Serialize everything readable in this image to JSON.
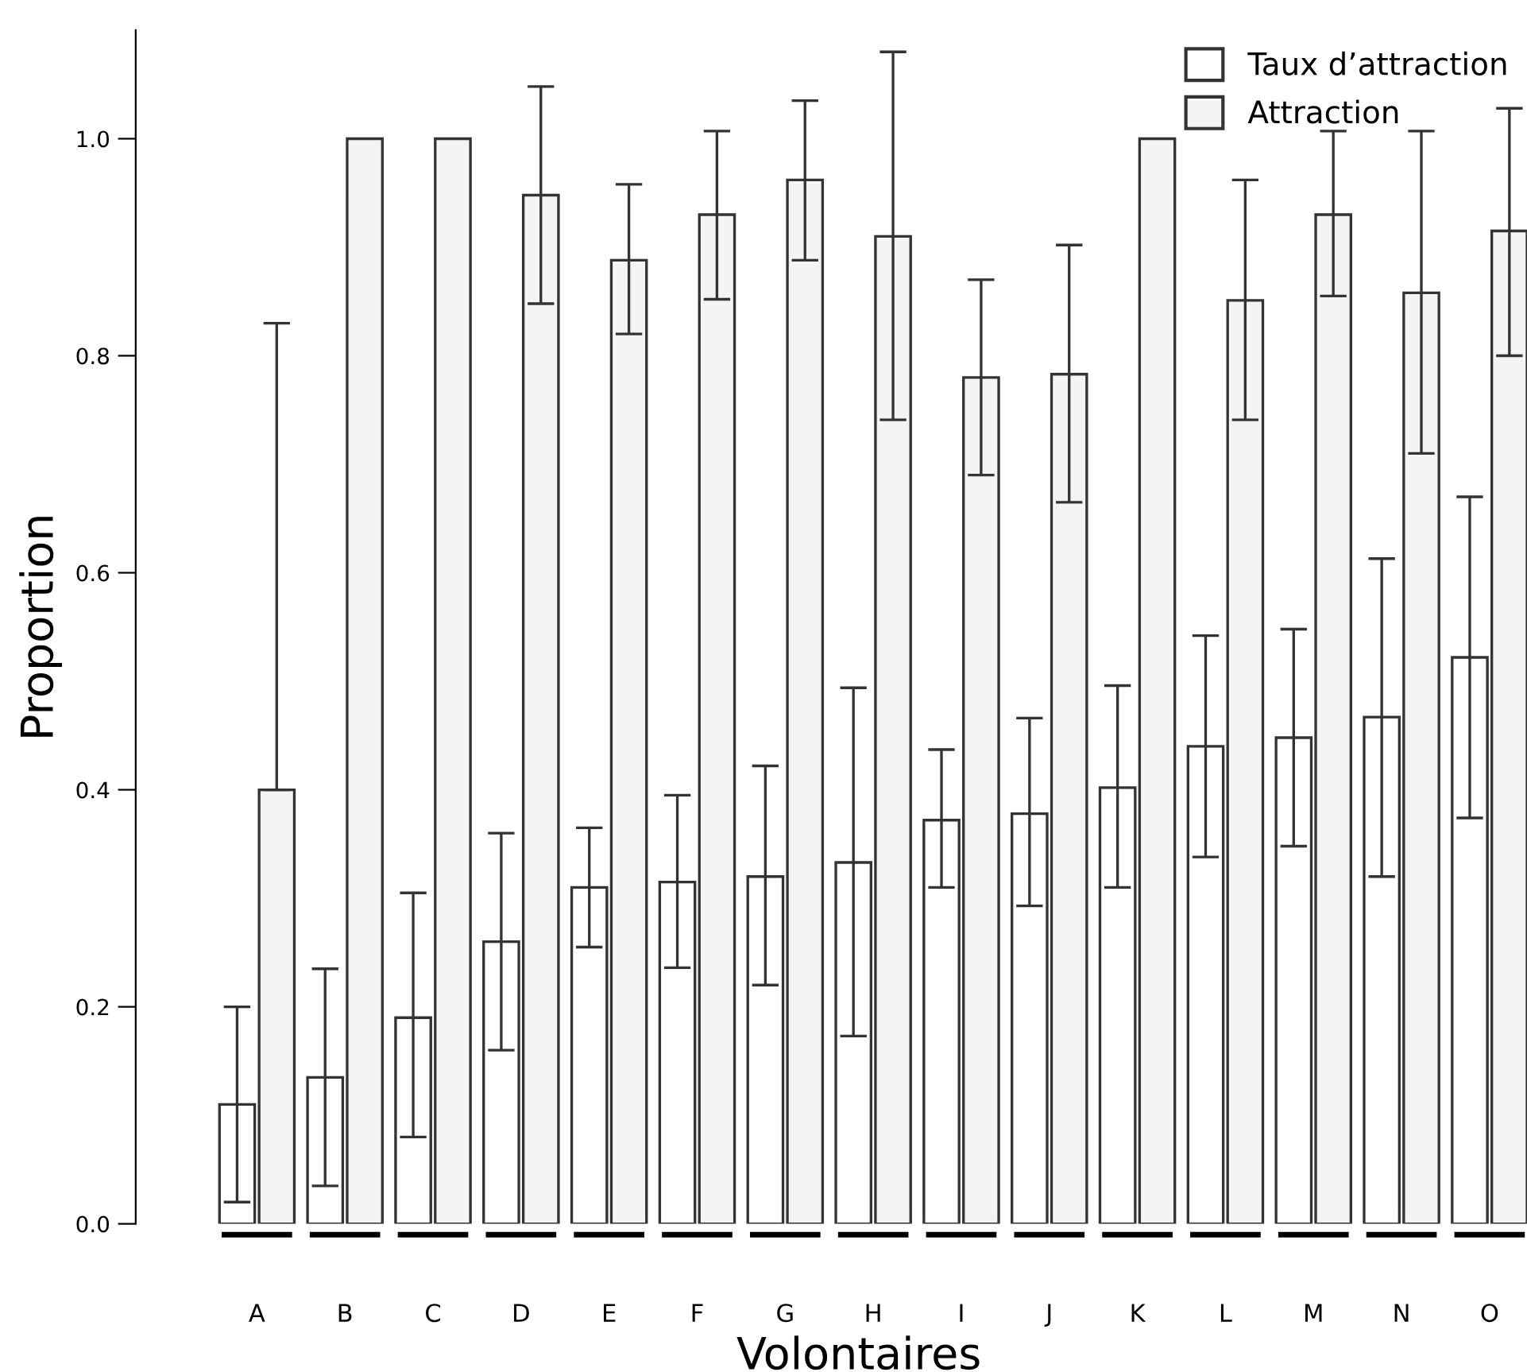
{
  "chart_data": {
    "type": "bar",
    "xlabel": "Volontaires",
    "ylabel": "Proportion",
    "categories": [
      "A",
      "B",
      "C",
      "D",
      "E",
      "F",
      "G",
      "H",
      "I",
      "J",
      "K",
      "L",
      "M",
      "N",
      "O"
    ],
    "series": [
      {
        "name": "Taux d’attraction",
        "color": "#ffffff",
        "values": [
          0.11,
          0.135,
          0.19,
          0.26,
          0.31,
          0.315,
          0.32,
          0.333,
          0.372,
          0.378,
          0.402,
          0.44,
          0.448,
          0.467,
          0.522
        ],
        "errors": [
          [
            0.02,
            0.2
          ],
          [
            0.035,
            0.235
          ],
          [
            0.08,
            0.305
          ],
          [
            0.16,
            0.36
          ],
          [
            0.255,
            0.365
          ],
          [
            0.236,
            0.395
          ],
          [
            0.22,
            0.422
          ],
          [
            0.173,
            0.494
          ],
          [
            0.31,
            0.437
          ],
          [
            0.293,
            0.466
          ],
          [
            0.31,
            0.496
          ],
          [
            0.338,
            0.542
          ],
          [
            0.348,
            0.548
          ],
          [
            0.32,
            0.613
          ],
          [
            0.374,
            0.67
          ]
        ]
      },
      {
        "name": "Attraction",
        "color": "#f4f4f4",
        "values": [
          0.4,
          1.0,
          1.0,
          0.948,
          0.888,
          0.93,
          0.962,
          0.91,
          0.78,
          0.783,
          1.0,
          0.851,
          0.93,
          0.858,
          0.915
        ],
        "errors": [
          [
            0.4,
            0.83
          ],
          null,
          null,
          [
            0.848,
            1.048
          ],
          [
            0.82,
            0.958
          ],
          [
            0.852,
            1.007
          ],
          [
            0.888,
            1.035
          ],
          [
            0.741,
            1.08
          ],
          [
            0.69,
            0.87
          ],
          [
            0.665,
            0.902
          ],
          null,
          [
            0.741,
            0.962
          ],
          [
            0.855,
            1.007
          ],
          [
            0.71,
            1.007
          ],
          [
            0.8,
            1.028
          ]
        ]
      }
    ],
    "ylim": [
      0,
      1.1
    ],
    "yticks": [
      {
        "value": 0,
        "label": "0.0"
      },
      {
        "value": 0.2,
        "label": "0.2"
      },
      {
        "value": 0.4,
        "label": "0.4"
      },
      {
        "value": 0.6,
        "label": "0.6"
      },
      {
        "value": 0.8,
        "label": "0.8"
      },
      {
        "value": 1,
        "label": "1.0"
      }
    ],
    "grid": false,
    "legend": "top right"
  }
}
